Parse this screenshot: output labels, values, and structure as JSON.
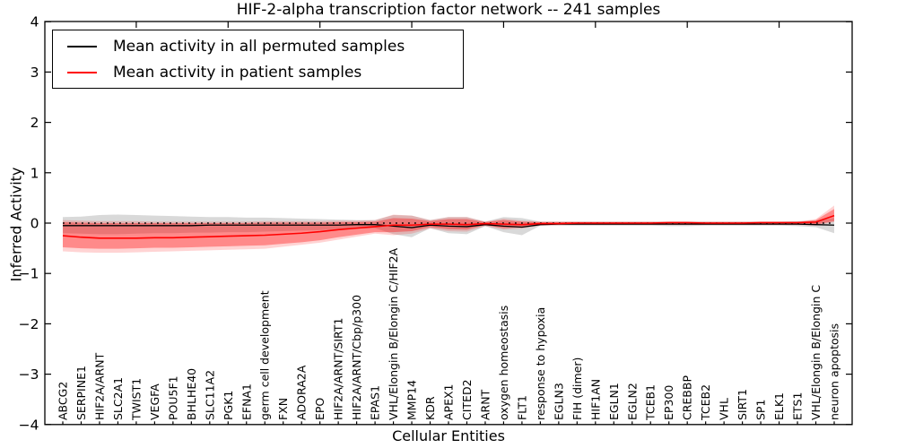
{
  "title": "HIF-2-alpha transcription factor network -- 241 samples",
  "legend": {
    "position": "upper left",
    "entries": [
      {
        "label": "Mean activity in all permuted samples",
        "color": "#000000"
      },
      {
        "label": "Mean activity in patient samples",
        "color": "#ff0000"
      }
    ]
  },
  "chart_data": {
    "type": "line",
    "title": "HIF-2-alpha transcription factor network -- 241 samples",
    "xlabel": "Cellular Entities",
    "ylabel": "Inferred Activity",
    "ylim": [
      -4,
      4
    ],
    "yticks": [
      -4,
      -3,
      -2,
      -1,
      0,
      1,
      2,
      3,
      4
    ],
    "grid": false,
    "zero_line_style": "dotted",
    "x_tick_label_rotation": 90,
    "band_colors": {
      "permuted": "rgba(0,0,0,0.15)",
      "patient_inner": "rgba(255,0,0,0.35)",
      "patient_outer": "rgba(255,0,0,0.17)"
    },
    "categories": [
      "ABCG2",
      "SERPINE1",
      "HIF2A/ARNT",
      "SLC2A1",
      "TWIST1",
      "VEGFA",
      "POU5F1",
      "BHLHE40",
      "SLC11A2",
      "PGK1",
      "EFNA1",
      "germ cell development",
      "FXN",
      "ADORA2A",
      "EPO",
      "HIF2A/ARNT/SIRT1",
      "HIF2A/ARNT/Cbp/p300",
      "EPAS1",
      "VHL/Elongin B/Elongin C/HIF2A",
      "MMP14",
      "KDR",
      "APEX1",
      "CITED2",
      "ARNT",
      "oxygen homeostasis",
      "FLT1",
      "response to hypoxia",
      "EGLN3",
      "FIH (dimer)",
      "HIF1AN",
      "EGLN1",
      "EGLN2",
      "TCEB1",
      "EP300",
      "CREBBP",
      "TCEB2",
      "VHL",
      "SIRT1",
      "SP1",
      "ELK1",
      "ETS1",
      "VHL/Elongin B/Elongin C",
      "neuron apoptosis"
    ],
    "series": [
      {
        "name": "Mean activity in all permuted samples",
        "color": "#000000",
        "values": [
          -0.05,
          -0.05,
          -0.05,
          -0.05,
          -0.05,
          -0.05,
          -0.05,
          -0.05,
          -0.04,
          -0.04,
          -0.04,
          -0.04,
          -0.04,
          -0.04,
          -0.04,
          -0.04,
          -0.03,
          -0.03,
          -0.06,
          -0.09,
          -0.04,
          -0.06,
          -0.07,
          -0.03,
          -0.06,
          -0.08,
          -0.03,
          -0.02,
          -0.02,
          -0.02,
          -0.02,
          -0.02,
          -0.02,
          -0.02,
          -0.02,
          -0.02,
          -0.02,
          -0.02,
          -0.02,
          -0.02,
          -0.02,
          -0.03,
          -0.04
        ],
        "band_lo": [
          -0.2,
          -0.21,
          -0.22,
          -0.22,
          -0.21,
          -0.2,
          -0.2,
          -0.19,
          -0.19,
          -0.18,
          -0.18,
          -0.17,
          -0.16,
          -0.15,
          -0.14,
          -0.12,
          -0.11,
          -0.1,
          -0.22,
          -0.28,
          -0.1,
          -0.2,
          -0.22,
          -0.06,
          -0.18,
          -0.24,
          -0.05,
          -0.05,
          -0.05,
          -0.05,
          -0.05,
          -0.05,
          -0.05,
          -0.06,
          -0.06,
          -0.05,
          -0.05,
          -0.05,
          -0.05,
          -0.05,
          -0.06,
          -0.08,
          -0.2
        ],
        "band_hi": [
          0.12,
          0.13,
          0.16,
          0.17,
          0.16,
          0.15,
          0.14,
          0.13,
          0.12,
          0.12,
          0.11,
          0.11,
          0.1,
          0.09,
          0.08,
          0.07,
          0.06,
          0.06,
          0.16,
          0.15,
          0.06,
          0.12,
          0.12,
          0.03,
          0.12,
          0.1,
          0.03,
          0.03,
          0.03,
          0.03,
          0.03,
          0.03,
          0.03,
          0.03,
          0.03,
          0.03,
          0.03,
          0.03,
          0.03,
          0.03,
          0.04,
          0.05,
          0.1
        ]
      },
      {
        "name": "Mean activity in patient samples",
        "color": "#ff0000",
        "values": [
          -0.25,
          -0.28,
          -0.3,
          -0.3,
          -0.3,
          -0.29,
          -0.29,
          -0.28,
          -0.27,
          -0.26,
          -0.25,
          -0.24,
          -0.22,
          -0.2,
          -0.17,
          -0.13,
          -0.1,
          -0.07,
          -0.04,
          -0.04,
          -0.02,
          -0.02,
          -0.03,
          -0.01,
          -0.02,
          -0.03,
          -0.01,
          -0.01,
          0.0,
          0.0,
          0.0,
          0.0,
          0.0,
          0.01,
          0.01,
          0.0,
          0.0,
          0.0,
          0.01,
          0.01,
          0.01,
          0.02,
          0.15
        ],
        "inner_lo": [
          -0.48,
          -0.5,
          -0.51,
          -0.51,
          -0.5,
          -0.49,
          -0.49,
          -0.48,
          -0.47,
          -0.46,
          -0.45,
          -0.44,
          -0.41,
          -0.38,
          -0.34,
          -0.28,
          -0.23,
          -0.18,
          -0.18,
          -0.16,
          -0.08,
          -0.12,
          -0.13,
          -0.04,
          -0.1,
          -0.08,
          -0.03,
          -0.03,
          -0.03,
          -0.03,
          -0.03,
          -0.03,
          -0.03,
          -0.03,
          -0.03,
          -0.03,
          -0.03,
          -0.03,
          -0.03,
          -0.03,
          -0.03,
          -0.03,
          0.04
        ],
        "inner_hi": [
          0.02,
          0.01,
          0.0,
          0.0,
          0.0,
          0.0,
          0.0,
          0.0,
          0.0,
          0.0,
          0.0,
          0.01,
          0.01,
          0.01,
          0.01,
          0.02,
          0.02,
          0.03,
          0.1,
          0.09,
          0.04,
          0.08,
          0.08,
          0.02,
          0.06,
          0.03,
          0.02,
          0.02,
          0.02,
          0.02,
          0.02,
          0.02,
          0.02,
          0.02,
          0.02,
          0.02,
          0.02,
          0.02,
          0.02,
          0.02,
          0.02,
          0.06,
          0.28
        ],
        "outer_lo": [
          -0.56,
          -0.58,
          -0.59,
          -0.59,
          -0.58,
          -0.57,
          -0.56,
          -0.55,
          -0.54,
          -0.53,
          -0.52,
          -0.51,
          -0.47,
          -0.43,
          -0.39,
          -0.33,
          -0.27,
          -0.21,
          -0.24,
          -0.21,
          -0.11,
          -0.16,
          -0.17,
          -0.06,
          -0.13,
          -0.11,
          -0.05,
          -0.04,
          -0.04,
          -0.04,
          -0.04,
          -0.04,
          -0.04,
          -0.04,
          -0.04,
          -0.04,
          -0.04,
          -0.04,
          -0.04,
          -0.04,
          -0.04,
          -0.05,
          0.02
        ],
        "outer_hi": [
          0.06,
          0.05,
          0.04,
          0.04,
          0.04,
          0.03,
          0.03,
          0.03,
          0.03,
          0.03,
          0.03,
          0.04,
          0.04,
          0.04,
          0.04,
          0.05,
          0.05,
          0.06,
          0.17,
          0.15,
          0.06,
          0.12,
          0.12,
          0.03,
          0.09,
          0.05,
          0.03,
          0.03,
          0.03,
          0.03,
          0.03,
          0.03,
          0.03,
          0.03,
          0.03,
          0.03,
          0.03,
          0.03,
          0.03,
          0.03,
          0.03,
          0.08,
          0.35
        ]
      }
    ]
  }
}
